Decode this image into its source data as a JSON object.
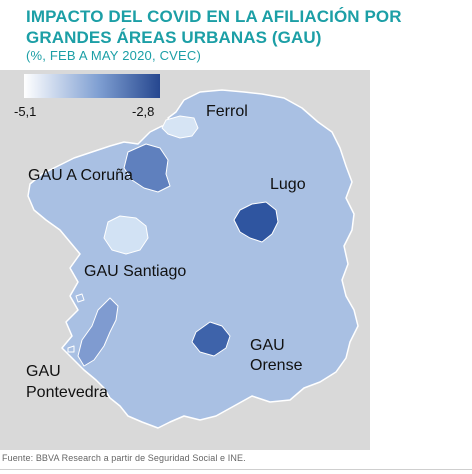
{
  "title": "IMPACTO DEL COVID EN LA AFILIACIÓN POR GRANDES ÁREAS URBANAS (GAU)",
  "subtitle": "(%, FEB A MAY 2020, CVEC)",
  "legend": {
    "min_label": "-5,1",
    "max_label": "-2,8",
    "min_value": -5.1,
    "max_value": -2.8,
    "color_low": "#ffffff",
    "color_high": "#26478f"
  },
  "colors": {
    "title": "#1c9fa6",
    "background_frame": "#d9d9d9",
    "region_base": "#a9c0e3",
    "region_outline": "#ffffff",
    "ferrol": "#d6e4f4",
    "coruna": "#5f80be",
    "lugo": "#2f55a0",
    "santiago": "#d2e2f4",
    "orense": "#3e63aa",
    "pontevedra": "#7f9bd0"
  },
  "labels": {
    "ferrol": "Ferrol",
    "coruna": "GAU A Coruña",
    "lugo": "Lugo",
    "santiago": "GAU Santiago",
    "orense_1": "GAU",
    "orense_2": "Orense",
    "pontevedra_1": "GAU",
    "pontevedra_2": "Pontevedra"
  },
  "source": "Fuente: BBVA Research a partir de Seguridad Social e INE."
}
